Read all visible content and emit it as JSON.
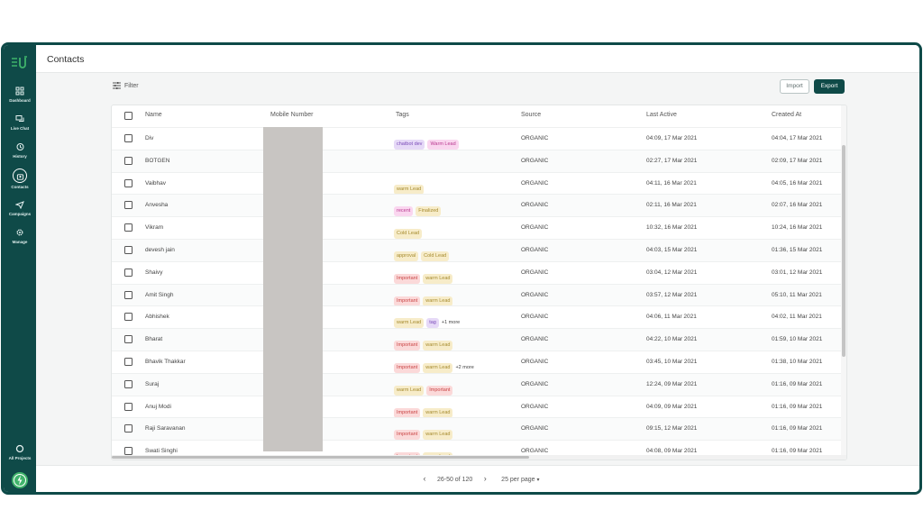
{
  "sidebar": {
    "items": [
      {
        "label": "Dashboard",
        "icon": "dashboard-icon"
      },
      {
        "label": "Live Chat",
        "icon": "chat-icon"
      },
      {
        "label": "History",
        "icon": "history-icon"
      },
      {
        "label": "Contacts",
        "icon": "contacts-icon",
        "active": true
      },
      {
        "label": "Campaigns",
        "icon": "campaign-icon"
      },
      {
        "label": "Manage",
        "icon": "gear-icon"
      }
    ],
    "bottom": {
      "label": "All Projects",
      "icon": "projects-icon"
    }
  },
  "header": {
    "title": "Contacts"
  },
  "toolbar": {
    "filter_label": "Filter",
    "import_label": "Import",
    "export_label": "Export"
  },
  "table": {
    "columns": [
      "Name",
      "Mobile Number",
      "Tags",
      "Source",
      "Last Active",
      "Created At"
    ],
    "rows": [
      {
        "name": "Div",
        "tags": [
          {
            "t": "chatbot dev",
            "c": "purple"
          },
          {
            "t": "Warm Lead",
            "c": "pink"
          }
        ],
        "more": "",
        "source": "ORGANIC",
        "last_active": "04:09, 17 Mar 2021",
        "created": "04:04, 17 Mar 2021"
      },
      {
        "name": "BOTGEN",
        "tags": [],
        "more": "",
        "source": "ORGANIC",
        "last_active": "02:27, 17 Mar 2021",
        "created": "02:09, 17 Mar 2021"
      },
      {
        "name": "Vaibhav",
        "tags": [
          {
            "t": "warm Lead",
            "c": "yellow"
          }
        ],
        "more": "",
        "source": "ORGANIC",
        "last_active": "04:11, 16 Mar 2021",
        "created": "04:05, 16 Mar 2021"
      },
      {
        "name": "Anvesha",
        "tags": [
          {
            "t": "recent",
            "c": "pink"
          },
          {
            "t": "Finalized",
            "c": "yellow"
          }
        ],
        "more": "",
        "source": "ORGANIC",
        "last_active": "02:11, 16 Mar 2021",
        "created": "02:07, 16 Mar 2021"
      },
      {
        "name": "Vikram",
        "tags": [
          {
            "t": "Cold Lead",
            "c": "yellow"
          }
        ],
        "more": "",
        "source": "ORGANIC",
        "last_active": "10:32, 16 Mar 2021",
        "created": "10:24, 16 Mar 2021"
      },
      {
        "name": "devesh jain",
        "tags": [
          {
            "t": "approval",
            "c": "yellow"
          },
          {
            "t": "Cold Lead",
            "c": "yellow"
          }
        ],
        "more": "",
        "source": "ORGANIC",
        "last_active": "04:03, 15 Mar 2021",
        "created": "01:36, 15 Mar 2021"
      },
      {
        "name": "Shaivy",
        "tags": [
          {
            "t": "Important",
            "c": "red"
          },
          {
            "t": "warm Lead",
            "c": "yellow"
          }
        ],
        "more": "",
        "source": "ORGANIC",
        "last_active": "03:04, 12 Mar 2021",
        "created": "03:01, 12 Mar 2021"
      },
      {
        "name": "Amit Singh",
        "tags": [
          {
            "t": "Important",
            "c": "red"
          },
          {
            "t": "warm Lead",
            "c": "yellow"
          }
        ],
        "more": "",
        "source": "ORGANIC",
        "last_active": "03:57, 12 Mar 2021",
        "created": "05:10, 11 Mar 2021"
      },
      {
        "name": "Abhishek",
        "tags": [
          {
            "t": "warm Lead",
            "c": "yellow"
          },
          {
            "t": "tag",
            "c": "purple"
          }
        ],
        "more": "+1 more",
        "source": "ORGANIC",
        "last_active": "04:06, 11 Mar 2021",
        "created": "04:02, 11 Mar 2021"
      },
      {
        "name": "Bharat",
        "tags": [
          {
            "t": "Important",
            "c": "red"
          },
          {
            "t": "warm Lead",
            "c": "yellow"
          }
        ],
        "more": "",
        "source": "ORGANIC",
        "last_active": "04:22, 10 Mar 2021",
        "created": "01:59, 10 Mar 2021"
      },
      {
        "name": "Bhavik Thakkar",
        "tags": [
          {
            "t": "Important",
            "c": "red"
          },
          {
            "t": "warm Lead",
            "c": "yellow"
          }
        ],
        "more": "+2 more",
        "source": "ORGANIC",
        "last_active": "03:45, 10 Mar 2021",
        "created": "01:38, 10 Mar 2021"
      },
      {
        "name": "Suraj",
        "tags": [
          {
            "t": "warm Lead",
            "c": "yellow"
          },
          {
            "t": "Important",
            "c": "red"
          }
        ],
        "more": "",
        "source": "ORGANIC",
        "last_active": "12:24, 09 Mar 2021",
        "created": "01:16, 09 Mar 2021"
      },
      {
        "name": "Anuj Modi",
        "tags": [
          {
            "t": "Important",
            "c": "red"
          },
          {
            "t": "warm Lead",
            "c": "yellow"
          }
        ],
        "more": "",
        "source": "ORGANIC",
        "last_active": "04:09, 09 Mar 2021",
        "created": "01:16, 09 Mar 2021"
      },
      {
        "name": "Raji Saravanan",
        "tags": [
          {
            "t": "Important",
            "c": "red"
          },
          {
            "t": "warm Lead",
            "c": "yellow"
          }
        ],
        "more": "",
        "source": "ORGANIC",
        "last_active": "09:15, 12 Mar 2021",
        "created": "01:16, 09 Mar 2021"
      },
      {
        "name": "Swati Singhi",
        "tags": [
          {
            "t": "Important",
            "c": "red"
          },
          {
            "t": "warm Lead",
            "c": "yellow"
          }
        ],
        "more": "",
        "source": "ORGANIC",
        "last_active": "04:08, 09 Mar 2021",
        "created": "01:16, 09 Mar 2021"
      }
    ]
  },
  "pagination": {
    "range": "26-50 of 120",
    "per_page": "25 per page"
  },
  "colors": {
    "brand": "#0f4a48",
    "accent": "#3fb36b",
    "tag_purple_bg": "#e6d9f7",
    "tag_purple_fg": "#7a4bb8",
    "tag_pink_bg": "#fad6ef",
    "tag_pink_fg": "#b8398f",
    "tag_yellow_bg": "#f7ecc9",
    "tag_yellow_fg": "#a58a2e",
    "tag_red_bg": "#fbd9d9",
    "tag_red_fg": "#c94444"
  }
}
